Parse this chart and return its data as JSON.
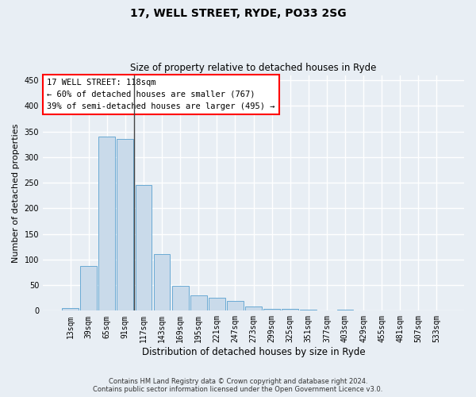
{
  "title1": "17, WELL STREET, RYDE, PO33 2SG",
  "title2": "Size of property relative to detached houses in Ryde",
  "xlabel": "Distribution of detached houses by size in Ryde",
  "ylabel": "Number of detached properties",
  "footnote": "Contains HM Land Registry data © Crown copyright and database right 2024.\nContains public sector information licensed under the Open Government Licence v3.0.",
  "bar_color": "#c9daea",
  "bar_edge_color": "#6aaad4",
  "categories": [
    "13sqm",
    "39sqm",
    "65sqm",
    "91sqm",
    "117sqm",
    "143sqm",
    "169sqm",
    "195sqm",
    "221sqm",
    "247sqm",
    "273sqm",
    "299sqm",
    "325sqm",
    "351sqm",
    "377sqm",
    "403sqm",
    "429sqm",
    "455sqm",
    "481sqm",
    "507sqm",
    "533sqm"
  ],
  "values": [
    5,
    88,
    340,
    335,
    245,
    110,
    49,
    30,
    25,
    19,
    9,
    4,
    3,
    2,
    1,
    2,
    0,
    0,
    0,
    0,
    0
  ],
  "vline_x_index": 4,
  "annotation_text": "17 WELL STREET: 118sqm\n← 60% of detached houses are smaller (767)\n39% of semi-detached houses are larger (495) →",
  "ylim": [
    0,
    460
  ],
  "yticks": [
    0,
    50,
    100,
    150,
    200,
    250,
    300,
    350,
    400,
    450
  ],
  "background_color": "#e8eef4",
  "grid_color": "#ffffff",
  "vline_color": "#444444",
  "title1_fontsize": 10,
  "title2_fontsize": 8.5,
  "xlabel_fontsize": 8.5,
  "ylabel_fontsize": 8,
  "tick_fontsize": 7,
  "annotation_fontsize": 7.5,
  "footnote_fontsize": 6
}
